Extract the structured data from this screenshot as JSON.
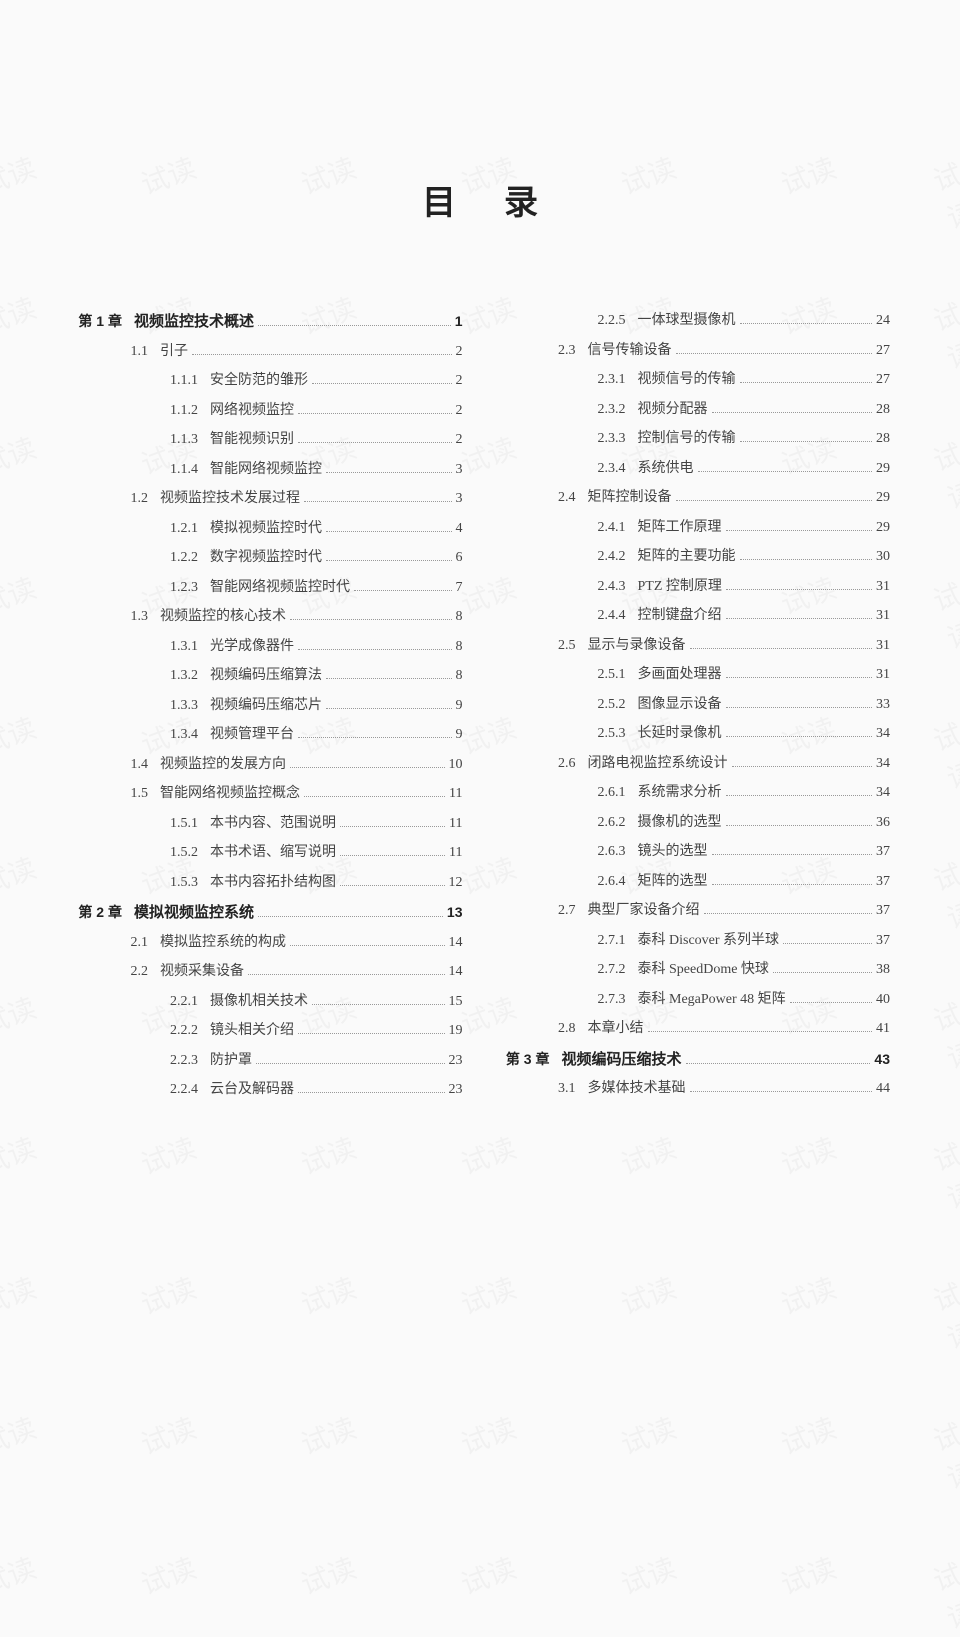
{
  "title": "目录",
  "watermark_text": "试读",
  "columns": [
    [
      {
        "level": "chapter",
        "label": "第 1 章",
        "text": "视频监控技术概述",
        "page": "1"
      },
      {
        "level": "section",
        "label": "1.1",
        "text": "引子",
        "page": "2"
      },
      {
        "level": "sub",
        "label": "1.1.1",
        "text": "安全防范的雏形",
        "page": "2"
      },
      {
        "level": "sub",
        "label": "1.1.2",
        "text": "网络视频监控",
        "page": "2"
      },
      {
        "level": "sub",
        "label": "1.1.3",
        "text": "智能视频识别",
        "page": "2"
      },
      {
        "level": "sub",
        "label": "1.1.4",
        "text": "智能网络视频监控",
        "page": "3"
      },
      {
        "level": "section",
        "label": "1.2",
        "text": "视频监控技术发展过程",
        "page": "3"
      },
      {
        "level": "sub",
        "label": "1.2.1",
        "text": "模拟视频监控时代",
        "page": "4"
      },
      {
        "level": "sub",
        "label": "1.2.2",
        "text": "数字视频监控时代",
        "page": "6"
      },
      {
        "level": "sub",
        "label": "1.2.3",
        "text": "智能网络视频监控时代",
        "page": "7"
      },
      {
        "level": "section",
        "label": "1.3",
        "text": "视频监控的核心技术",
        "page": "8"
      },
      {
        "level": "sub",
        "label": "1.3.1",
        "text": "光学成像器件",
        "page": "8"
      },
      {
        "level": "sub",
        "label": "1.3.2",
        "text": "视频编码压缩算法",
        "page": "8"
      },
      {
        "level": "sub",
        "label": "1.3.3",
        "text": "视频编码压缩芯片",
        "page": "9"
      },
      {
        "level": "sub",
        "label": "1.3.4",
        "text": "视频管理平台",
        "page": "9"
      },
      {
        "level": "section",
        "label": "1.4",
        "text": "视频监控的发展方向",
        "page": "10"
      },
      {
        "level": "section",
        "label": "1.5",
        "text": "智能网络视频监控概念",
        "page": "11"
      },
      {
        "level": "sub",
        "label": "1.5.1",
        "text": "本书内容、范围说明",
        "page": "11"
      },
      {
        "level": "sub",
        "label": "1.5.2",
        "text": "本书术语、缩写说明",
        "page": "11"
      },
      {
        "level": "sub",
        "label": "1.5.3",
        "text": "本书内容拓扑结构图",
        "page": "12"
      },
      {
        "level": "chapter",
        "label": "第 2 章",
        "text": "模拟视频监控系统",
        "page": "13"
      },
      {
        "level": "section",
        "label": "2.1",
        "text": "模拟监控系统的构成",
        "page": "14"
      },
      {
        "level": "section",
        "label": "2.2",
        "text": "视频采集设备",
        "page": "14"
      },
      {
        "level": "sub",
        "label": "2.2.1",
        "text": "摄像机相关技术",
        "page": "15"
      },
      {
        "level": "sub",
        "label": "2.2.2",
        "text": "镜头相关介绍",
        "page": "19"
      },
      {
        "level": "sub",
        "label": "2.2.3",
        "text": "防护罩",
        "page": "23"
      },
      {
        "level": "sub",
        "label": "2.2.4",
        "text": "云台及解码器",
        "page": "23"
      }
    ],
    [
      {
        "level": "sub",
        "label": "2.2.5",
        "text": "一体球型摄像机",
        "page": "24"
      },
      {
        "level": "section",
        "label": "2.3",
        "text": "信号传输设备",
        "page": "27"
      },
      {
        "level": "sub",
        "label": "2.3.1",
        "text": "视频信号的传输",
        "page": "27"
      },
      {
        "level": "sub",
        "label": "2.3.2",
        "text": "视频分配器",
        "page": "28"
      },
      {
        "level": "sub",
        "label": "2.3.3",
        "text": "控制信号的传输",
        "page": "28"
      },
      {
        "level": "sub",
        "label": "2.3.4",
        "text": "系统供电",
        "page": "29"
      },
      {
        "level": "section",
        "label": "2.4",
        "text": "矩阵控制设备",
        "page": "29"
      },
      {
        "level": "sub",
        "label": "2.4.1",
        "text": "矩阵工作原理",
        "page": "29"
      },
      {
        "level": "sub",
        "label": "2.4.2",
        "text": "矩阵的主要功能",
        "page": "30"
      },
      {
        "level": "sub",
        "label": "2.4.3",
        "text": "PTZ 控制原理",
        "page": "31"
      },
      {
        "level": "sub",
        "label": "2.4.4",
        "text": "控制键盘介绍",
        "page": "31"
      },
      {
        "level": "section",
        "label": "2.5",
        "text": "显示与录像设备",
        "page": "31"
      },
      {
        "level": "sub",
        "label": "2.5.1",
        "text": "多画面处理器",
        "page": "31"
      },
      {
        "level": "sub",
        "label": "2.5.2",
        "text": "图像显示设备",
        "page": "33"
      },
      {
        "level": "sub",
        "label": "2.5.3",
        "text": "长延时录像机",
        "page": "34"
      },
      {
        "level": "section",
        "label": "2.6",
        "text": "闭路电视监控系统设计",
        "page": "34"
      },
      {
        "level": "sub",
        "label": "2.6.1",
        "text": "系统需求分析",
        "page": "34"
      },
      {
        "level": "sub",
        "label": "2.6.2",
        "text": "摄像机的选型",
        "page": "36"
      },
      {
        "level": "sub",
        "label": "2.6.3",
        "text": "镜头的选型",
        "page": "37"
      },
      {
        "level": "sub",
        "label": "2.6.4",
        "text": "矩阵的选型",
        "page": "37"
      },
      {
        "level": "section",
        "label": "2.7",
        "text": "典型厂家设备介绍",
        "page": "37"
      },
      {
        "level": "sub",
        "label": "2.7.1",
        "text": "泰科 Discover 系列半球",
        "page": "37"
      },
      {
        "level": "sub",
        "label": "2.7.2",
        "text": "泰科 SpeedDome 快球",
        "page": "38"
      },
      {
        "level": "sub",
        "label": "2.7.3",
        "text": "泰科 MegaPower 48 矩阵",
        "page": "40"
      },
      {
        "level": "section",
        "label": "2.8",
        "text": "本章小结",
        "page": "41"
      },
      {
        "level": "chapter",
        "label": "第 3 章",
        "text": "视频编码压缩技术",
        "page": "43"
      },
      {
        "level": "section",
        "label": "3.1",
        "text": "多媒体技术基础",
        "page": "44"
      }
    ]
  ]
}
